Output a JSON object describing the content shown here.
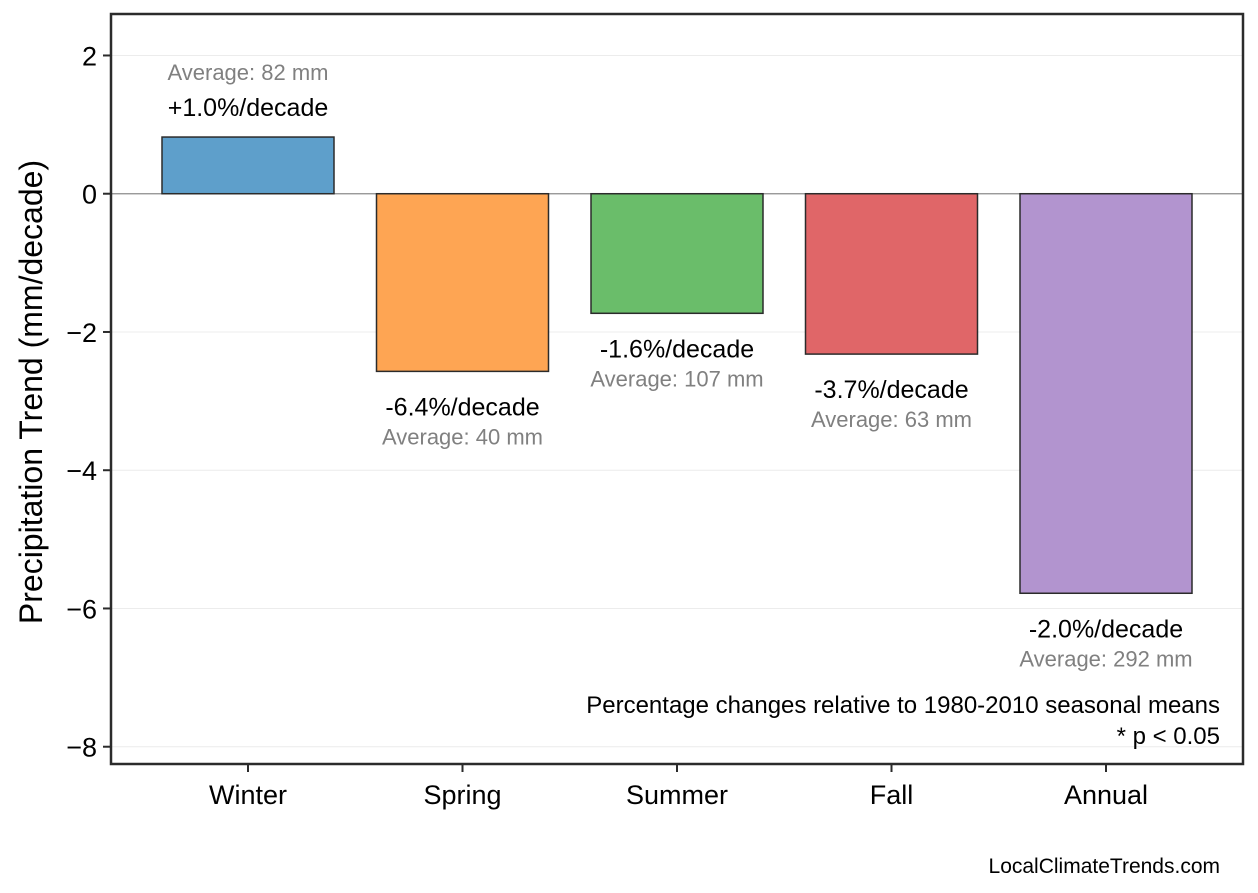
{
  "chart_data": {
    "type": "bar",
    "categories": [
      "Winter",
      "Spring",
      "Summer",
      "Fall",
      "Annual"
    ],
    "values": [
      0.82,
      -2.57,
      -1.73,
      -2.32,
      -5.78
    ],
    "percent_labels": [
      "+1.0%/decade",
      "-6.4%/decade",
      "-1.6%/decade",
      "-3.7%/decade",
      "-2.0%/decade"
    ],
    "average_labels": [
      "Average: 82 mm",
      "Average: 40 mm",
      "Average: 107 mm",
      "Average: 63 mm",
      "Average: 292 mm"
    ],
    "colors": [
      "#5e9fcb",
      "#fea553",
      "#6abd6a",
      "#e06668",
      "#b294cf"
    ],
    "ylabel": "Precipitation Trend (mm/decade)",
    "ylim": [
      -8.25,
      2.6
    ],
    "yticks": [
      2,
      0,
      -2,
      -4,
      -6,
      -8
    ],
    "ytick_labels": [
      "2",
      "0",
      "−2",
      "−4",
      "−6",
      "−8"
    ],
    "grid": true,
    "zero_line": true,
    "footnote_lines": [
      "Percentage changes relative to 1980-2010 seasonal means",
      "* p < 0.05"
    ],
    "credit": "LocalClimateTrends.com"
  }
}
